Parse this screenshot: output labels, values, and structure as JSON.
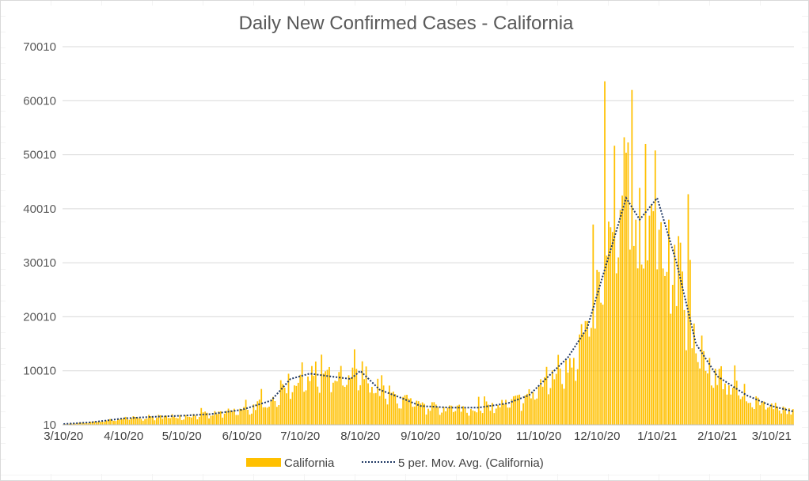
{
  "chart_data": {
    "type": "bar",
    "title": "Daily New Confirmed Cases - California",
    "xlabel": "",
    "ylabel": "",
    "ylim": [
      10,
      70010
    ],
    "y_ticks": [
      "10",
      "10010",
      "20010",
      "30010",
      "40010",
      "50010",
      "60010",
      "70010"
    ],
    "x_tick_labels": [
      "3/10/20",
      "4/10/20",
      "5/10/20",
      "6/10/20",
      "7/10/20",
      "8/10/20",
      "9/10/20",
      "10/10/20",
      "11/10/20",
      "12/10/20",
      "1/10/21",
      "2/10/21",
      "3/10/21"
    ],
    "x_range": [
      "3/10/20",
      "3/21/21"
    ],
    "grid": true,
    "legend_position": "bottom",
    "series": [
      {
        "name": "California",
        "kind": "bar",
        "color": "#FFC000",
        "points": [
          [
            "3/10/20",
            150
          ],
          [
            "3/25/20",
            500
          ],
          [
            "4/10/20",
            1200
          ],
          [
            "4/25/20",
            1500
          ],
          [
            "5/10/20",
            1700
          ],
          [
            "5/25/20",
            2000
          ],
          [
            "6/10/20",
            2800
          ],
          [
            "6/25/20",
            4500
          ],
          [
            "7/5/20",
            8500
          ],
          [
            "7/15/20",
            9500
          ],
          [
            "7/25/20",
            9000
          ],
          [
            "8/5/20",
            8500
          ],
          [
            "8/10/20",
            10000
          ],
          [
            "8/20/20",
            6500
          ],
          [
            "8/31/20",
            5000
          ],
          [
            "9/10/20",
            3500
          ],
          [
            "9/25/20",
            3200
          ],
          [
            "10/10/20",
            3200
          ],
          [
            "10/25/20",
            4000
          ],
          [
            "11/5/20",
            5500
          ],
          [
            "11/15/20",
            9000
          ],
          [
            "11/25/20",
            12500
          ],
          [
            "12/5/20",
            18000
          ],
          [
            "12/15/20",
            30000
          ],
          [
            "12/25/20",
            42000
          ],
          [
            "1/1/21",
            38000
          ],
          [
            "1/10/21",
            42000
          ],
          [
            "1/20/21",
            30000
          ],
          [
            "1/30/21",
            15000
          ],
          [
            "2/10/21",
            9000
          ],
          [
            "2/25/21",
            5500
          ],
          [
            "3/10/21",
            3500
          ],
          [
            "3/21/21",
            2500
          ]
        ]
      },
      {
        "name": "5 per. Mov. Avg. (California)",
        "kind": "line",
        "color": "#1F3864",
        "points": [
          [
            "3/10/20",
            150
          ],
          [
            "3/25/20",
            500
          ],
          [
            "4/10/20",
            1200
          ],
          [
            "4/25/20",
            1500
          ],
          [
            "5/10/20",
            1700
          ],
          [
            "5/25/20",
            2000
          ],
          [
            "6/10/20",
            2800
          ],
          [
            "6/25/20",
            4500
          ],
          [
            "7/5/20",
            8500
          ],
          [
            "7/15/20",
            9500
          ],
          [
            "7/25/20",
            9000
          ],
          [
            "8/5/20",
            8500
          ],
          [
            "8/10/20",
            10000
          ],
          [
            "8/20/20",
            6500
          ],
          [
            "8/31/20",
            5000
          ],
          [
            "9/10/20",
            3500
          ],
          [
            "9/25/20",
            3200
          ],
          [
            "10/10/20",
            3200
          ],
          [
            "10/25/20",
            4000
          ],
          [
            "11/5/20",
            5500
          ],
          [
            "11/15/20",
            9000
          ],
          [
            "11/25/20",
            12500
          ],
          [
            "12/5/20",
            18000
          ],
          [
            "12/15/20",
            30000
          ],
          [
            "12/25/20",
            42000
          ],
          [
            "1/1/21",
            38000
          ],
          [
            "1/10/21",
            42000
          ],
          [
            "1/20/21",
            30000
          ],
          [
            "1/30/21",
            15000
          ],
          [
            "2/10/21",
            9000
          ],
          [
            "2/25/21",
            5500
          ],
          [
            "3/10/21",
            3500
          ],
          [
            "3/21/21",
            2500
          ]
        ]
      }
    ],
    "notable_daily_values": [
      [
        "12/14/20",
        63600
      ],
      [
        "12/28/20",
        62000
      ],
      [
        "1/4/21",
        52000
      ],
      [
        "1/9/21",
        50800
      ],
      [
        "1/26/21",
        42700
      ],
      [
        "7/21/20",
        13000
      ],
      [
        "8/7/20",
        14000
      ]
    ]
  }
}
